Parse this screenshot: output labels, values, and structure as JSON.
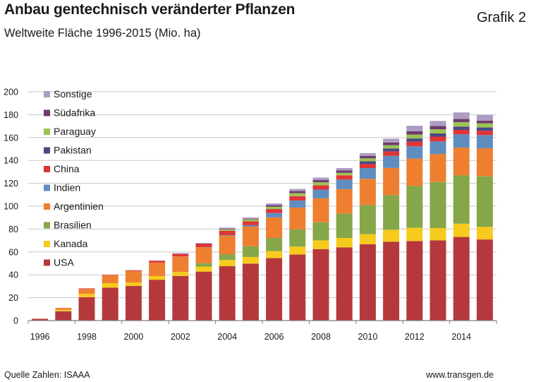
{
  "header": {
    "title": "Anbau gentechnisch veränderter Pflanzen",
    "subtitle": "Weltweite Fläche 1996-2015 (Mio. ha)",
    "grafik": "Grafik 2"
  },
  "footer": {
    "source": "Quelle Zahlen: ISAAA",
    "website": "www.transgen.de"
  },
  "chart_data": {
    "type": "bar",
    "stacked": true,
    "title": "Anbau gentechnisch veränderter Pflanzen",
    "subtitle": "Weltweite Fläche 1996-2015 (Mio. ha)",
    "ylim": [
      0,
      200
    ],
    "yticks": [
      0,
      20,
      40,
      60,
      80,
      100,
      120,
      140,
      160,
      180,
      200
    ],
    "grid": true,
    "legend_position": "top-left",
    "categories": [
      "1996",
      "1997",
      "1998",
      "1999",
      "2000",
      "2001",
      "2002",
      "2003",
      "2004",
      "2005",
      "2006",
      "2007",
      "2008",
      "2009",
      "2010",
      "2011",
      "2012",
      "2013",
      "2014",
      "2015"
    ],
    "xtick_labels": [
      "1996",
      "1998",
      "2000",
      "2002",
      "2004",
      "2006",
      "2008",
      "2010",
      "2012",
      "2014"
    ],
    "series": [
      {
        "name": "USA",
        "color": "#b5393c",
        "values": [
          1.5,
          8.1,
          20.5,
          28.7,
          30.3,
          35.7,
          39.0,
          42.8,
          47.6,
          49.8,
          54.6,
          57.7,
          62.5,
          64.0,
          66.8,
          69.0,
          69.5,
          70.1,
          73.1,
          70.9
        ]
      },
      {
        "name": "Kanada",
        "color": "#f6cb1d",
        "values": [
          0.1,
          1.3,
          2.8,
          4.0,
          3.0,
          3.2,
          3.5,
          4.4,
          5.4,
          5.8,
          6.1,
          7.0,
          7.6,
          8.2,
          8.8,
          10.4,
          11.6,
          10.8,
          11.6,
          11.0
        ]
      },
      {
        "name": "Brasilien",
        "color": "#86a64a",
        "values": [
          0,
          0,
          0,
          0,
          0,
          0,
          0,
          3.0,
          5.0,
          9.4,
          11.5,
          15.0,
          15.8,
          21.4,
          25.4,
          30.3,
          36.6,
          40.3,
          42.2,
          44.2
        ]
      },
      {
        "name": "Argentinien",
        "color": "#ee7f30",
        "values": [
          0.1,
          1.4,
          4.3,
          6.7,
          10.0,
          11.8,
          13.5,
          13.9,
          16.2,
          17.1,
          18.0,
          19.1,
          21.0,
          21.3,
          22.9,
          23.7,
          23.9,
          24.4,
          24.3,
          24.5
        ]
      },
      {
        "name": "Indien",
        "color": "#5f8dc0",
        "values": [
          0,
          0,
          0,
          0,
          0,
          0,
          0.1,
          0.1,
          0.5,
          1.3,
          3.8,
          6.2,
          7.6,
          8.4,
          9.4,
          10.6,
          10.8,
          11.0,
          11.6,
          11.6
        ]
      },
      {
        "name": "China",
        "color": "#e03436",
        "values": [
          0,
          0.2,
          0.5,
          0.5,
          0.5,
          1.5,
          2.1,
          2.8,
          3.7,
          3.3,
          3.5,
          3.8,
          3.8,
          3.7,
          3.5,
          3.9,
          4.0,
          4.2,
          3.9,
          3.7
        ]
      },
      {
        "name": "Pakistan",
        "color": "#4c4885",
        "values": [
          0,
          0,
          0,
          0,
          0,
          0,
          0,
          0,
          0,
          0,
          0,
          0,
          0,
          0,
          2.4,
          2.6,
          2.8,
          2.8,
          2.9,
          2.9
        ]
      },
      {
        "name": "Paraguay",
        "color": "#9bc453",
        "values": [
          0,
          0,
          0,
          0,
          0,
          0,
          0,
          0,
          1.2,
          1.8,
          2.0,
          2.6,
          2.7,
          2.2,
          2.6,
          2.8,
          3.4,
          3.6,
          3.9,
          3.6
        ]
      },
      {
        "name": "Südafrika",
        "color": "#6e3a6d",
        "values": [
          0,
          0,
          0,
          0,
          0,
          0,
          0.3,
          0.4,
          0.5,
          0.5,
          1.4,
          1.8,
          1.8,
          2.1,
          2.2,
          2.3,
          2.9,
          2.9,
          2.7,
          2.3
        ]
      },
      {
        "name": "Sonstige",
        "color": "#ad9cc3",
        "values": [
          0,
          0,
          0.1,
          0.1,
          0.4,
          0.4,
          0.5,
          0.4,
          1.2,
          1.2,
          1.5,
          1.9,
          2.2,
          2.0,
          2.4,
          3.4,
          4.8,
          4.4,
          5.8,
          5.0
        ]
      }
    ]
  }
}
